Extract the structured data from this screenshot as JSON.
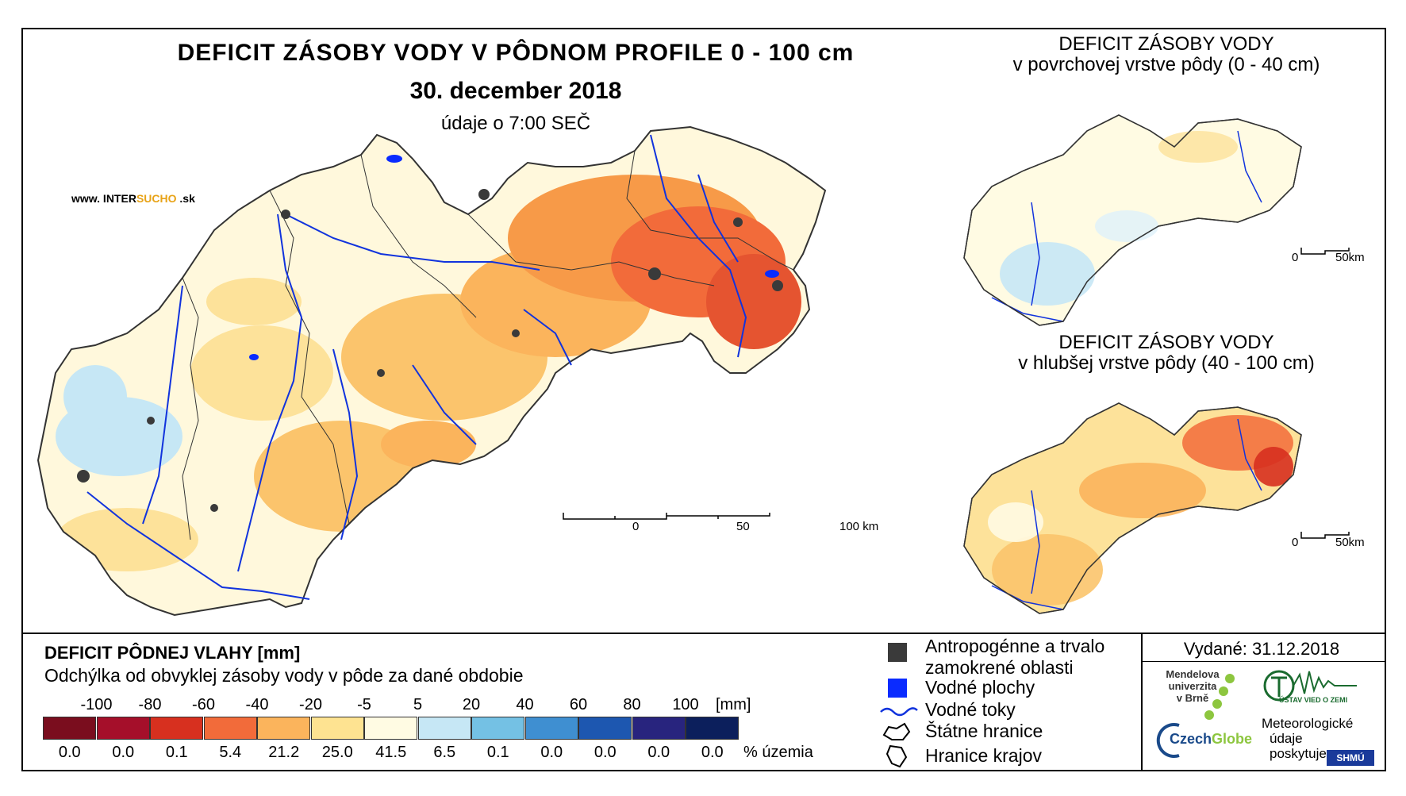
{
  "header": {
    "title": "DEFICIT ZÁSOBY VODY V PÔDNOM PROFILE 0 - 100 cm",
    "date": "30. december 2018",
    "time_note": "údaje o 7:00 SEČ"
  },
  "website": {
    "prefix": "www. INTER",
    "accent": "SUCHO",
    "suffix": " .sk"
  },
  "main_scale": {
    "labels": [
      "0",
      "50",
      "100 km"
    ]
  },
  "inset_top": {
    "title_line1": "DEFICIT ZÁSOBY VODY",
    "title_line2": "v povrchovej vrstve pôdy (0 - 40 cm)",
    "scale_labels": [
      "0",
      "50km"
    ]
  },
  "inset_bottom": {
    "title_line1": "DEFICIT ZÁSOBY VODY",
    "title_line2": "v hlubšej vrstve pôdy (40 - 100 cm)",
    "scale_labels": [
      "0",
      "50km"
    ]
  },
  "legend": {
    "title": "DEFICIT PÔDNEJ VLAHY [mm]",
    "subtitle": "Odchýlka od obvyklej zásoby vody v pôde za dané obdobie",
    "ticks": [
      "-100",
      "-80",
      "-60",
      "-40",
      "-20",
      "-5",
      "5",
      "20",
      "40",
      "60",
      "80",
      "100"
    ],
    "unit": "[mm]",
    "colors": [
      "#7a0d1e",
      "#a50f2a",
      "#d7301f",
      "#f26b3a",
      "#fbb45c",
      "#fee391",
      "#fffbe3",
      "#c6e7f5",
      "#74c1e4",
      "#3f8fd1",
      "#1d57b0",
      "#28247e",
      "#0c1f5c"
    ],
    "percentages": [
      "0.0",
      "0.0",
      "0.1",
      "5.4",
      "21.2",
      "25.0",
      "41.5",
      "6.5",
      "0.1",
      "0.0",
      "0.0",
      "0.0",
      "0.0"
    ],
    "pct_unit": "% územia"
  },
  "symbols": {
    "anthropogenic_line1": "Antropogénne a trvalo",
    "anthropogenic_line2": "zamokrené oblasti",
    "water_areas": "Vodné plochy",
    "rivers": "Vodné toky",
    "state_border": "Štátne hranice",
    "region_border": "Hranice krajov"
  },
  "issued": "Vydané: 31.12.2018",
  "logos": {
    "mendel_line1": "Mendelova",
    "mendel_line2": "univerzita",
    "mendel_line3": "v Brně",
    "czechglobe_a": "Czech",
    "czechglobe_b": "Globe",
    "uvgz": "ÚSTAV VIED O ZEMI",
    "meteo_line1": "Meteorologické",
    "meteo_line2": "údaje",
    "meteo_line3": "poskytuje:",
    "shmu": "SHMÚ"
  },
  "colors": {
    "water": "#0a2bff",
    "anthropogenic": "#3a3a3a"
  }
}
